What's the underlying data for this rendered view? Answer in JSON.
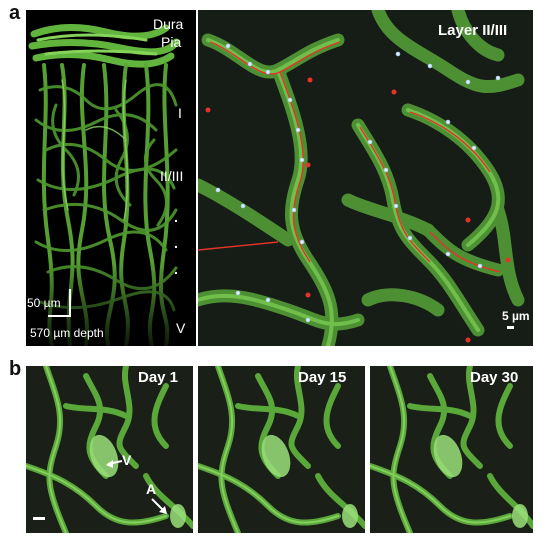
{
  "panel_a": {
    "letter": "a",
    "volume_labels": {
      "dura": "Dura",
      "pia": "Pia",
      "layer_i": "I",
      "layer_ii_iii": "II/III",
      "dot": ".",
      "layer_v": "V"
    },
    "scale_bar": "50 µm",
    "depth": "570 µm depth",
    "zoom_title": "Layer II/III",
    "zoom_scale_bar": "5 µm"
  },
  "panel_b": {
    "letter": "b",
    "frames": [
      {
        "title": "Day 1"
      },
      {
        "title": "Day 15"
      },
      {
        "title": "Day 30"
      }
    ],
    "annotation_v": "V",
    "annotation_a": "A"
  },
  "colors": {
    "vessel_green": "#6dc243",
    "vessel_highlight": "#c8f0a8",
    "background_dark": "#0f140f",
    "trace_red": "#e6332a",
    "marker_cyan": "#9fe3ff"
  }
}
